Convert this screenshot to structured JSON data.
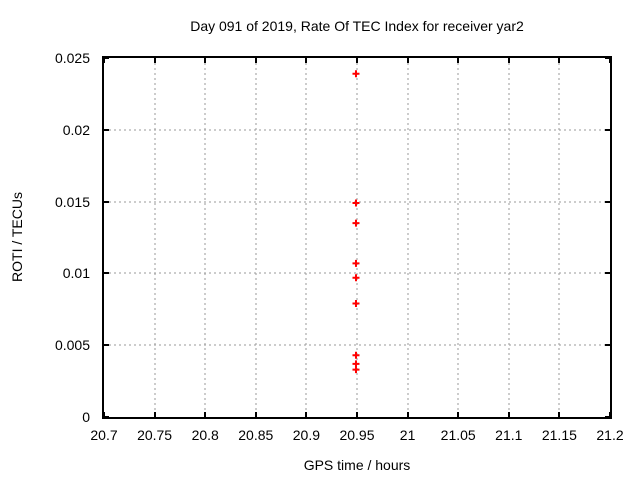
{
  "chart_data": {
    "type": "scatter",
    "title": "Day 091 of 2019, Rate Of TEC Index for receiver yar2",
    "xlabel": "GPS time / hours",
    "ylabel": "ROTI / TECUs",
    "xlim": [
      20.7,
      21.2
    ],
    "ylim": [
      0,
      0.025
    ],
    "grid": "dashed-major-both-axes",
    "legend_position": "none",
    "x_ticks": [
      {
        "v": 20.7,
        "label": "20.7"
      },
      {
        "v": 20.75,
        "label": "20.75"
      },
      {
        "v": 20.8,
        "label": "20.8"
      },
      {
        "v": 20.85,
        "label": "20.85"
      },
      {
        "v": 20.9,
        "label": "20.9"
      },
      {
        "v": 20.95,
        "label": "20.95"
      },
      {
        "v": 21.0,
        "label": "21"
      },
      {
        "v": 21.05,
        "label": "21.05"
      },
      {
        "v": 21.1,
        "label": "21.1"
      },
      {
        "v": 21.15,
        "label": "21.15"
      },
      {
        "v": 21.2,
        "label": "21.2"
      }
    ],
    "y_ticks": [
      {
        "v": 0,
        "label": "0"
      },
      {
        "v": 0.005,
        "label": "0.005"
      },
      {
        "v": 0.01,
        "label": "0.01"
      },
      {
        "v": 0.015,
        "label": "0.015"
      },
      {
        "v": 0.02,
        "label": "0.02"
      },
      {
        "v": 0.025,
        "label": "0.025"
      }
    ],
    "series": [
      {
        "name": "ROTI",
        "marker": "plus",
        "color": "#ff0000",
        "points": [
          [
            20.949,
            0.0239
          ],
          [
            20.949,
            0.0149
          ],
          [
            20.949,
            0.0135
          ],
          [
            20.949,
            0.0107
          ],
          [
            20.949,
            0.0097
          ],
          [
            20.949,
            0.0079
          ],
          [
            20.949,
            0.0043
          ],
          [
            20.949,
            0.0037
          ],
          [
            20.949,
            0.0033
          ]
        ]
      }
    ]
  },
  "colors": {
    "background": "#ffffff",
    "border": "#000000",
    "grid": "#9a9a9a",
    "marker": "#ff0000",
    "text": "#000000"
  }
}
